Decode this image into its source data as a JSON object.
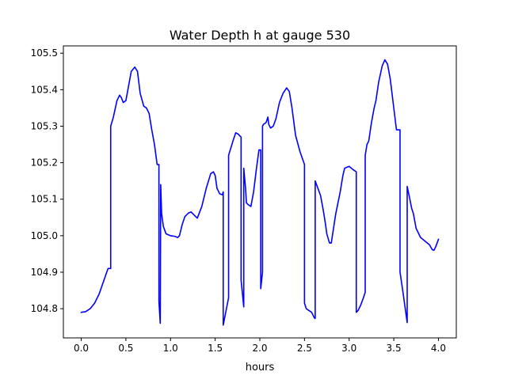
{
  "chart_data": {
    "type": "line",
    "title": "Water Depth h at gauge 530",
    "xlabel": "hours",
    "ylabel": "",
    "xlim": [
      -0.2,
      4.2
    ],
    "ylim": [
      104.72,
      105.52
    ],
    "xticks": [
      0.0,
      0.5,
      1.0,
      1.5,
      2.0,
      2.5,
      3.0,
      3.5,
      4.0
    ],
    "xtick_labels": [
      "0.0",
      "0.5",
      "1.0",
      "1.5",
      "2.0",
      "2.5",
      "3.0",
      "3.5",
      "4.0"
    ],
    "yticks": [
      104.8,
      104.9,
      105.0,
      105.1,
      105.2,
      105.3,
      105.4,
      105.5
    ],
    "ytick_labels": [
      "104.8",
      "104.9",
      "105.0",
      "105.1",
      "105.2",
      "105.3",
      "105.4",
      "105.5"
    ],
    "grid": false,
    "series": [
      {
        "color": "#0000ff",
        "x": [
          0.0,
          0.05,
          0.1,
          0.15,
          0.2,
          0.25,
          0.3,
          0.33,
          0.33,
          0.36,
          0.4,
          0.43,
          0.45,
          0.47,
          0.5,
          0.53,
          0.56,
          0.6,
          0.63,
          0.66,
          0.7,
          0.73,
          0.76,
          0.79,
          0.82,
          0.85,
          0.87,
          0.87,
          0.885,
          0.89,
          0.895,
          0.9,
          0.92,
          0.95,
          1.0,
          1.05,
          1.08,
          1.1,
          1.13,
          1.16,
          1.2,
          1.23,
          1.27,
          1.3,
          1.35,
          1.4,
          1.45,
          1.48,
          1.5,
          1.52,
          1.55,
          1.58,
          1.59,
          1.59,
          1.65,
          1.65,
          1.7,
          1.73,
          1.76,
          1.77,
          1.79,
          1.79,
          1.82,
          1.82,
          1.84,
          1.85,
          1.87,
          1.9,
          1.93,
          1.96,
          1.99,
          2.01,
          2.01,
          2.03,
          2.03,
          2.04,
          2.07,
          2.09,
          2.1,
          2.12,
          2.15,
          2.18,
          2.22,
          2.26,
          2.3,
          2.33,
          2.36,
          2.4,
          2.45,
          2.5,
          2.5,
          2.52,
          2.55,
          2.58,
          2.61,
          2.62,
          2.62,
          2.65,
          2.68,
          2.71,
          2.73,
          2.75,
          2.78,
          2.8,
          2.85,
          2.9,
          2.93,
          2.95,
          3.0,
          3.05,
          3.08,
          3.08,
          3.1,
          3.13,
          3.16,
          3.18,
          3.18,
          3.2,
          3.22,
          3.25,
          3.28,
          3.3,
          3.33,
          3.37,
          3.4,
          3.43,
          3.46,
          3.5,
          3.53,
          3.57,
          3.57,
          3.6,
          3.65,
          3.65,
          3.68,
          3.7,
          3.72,
          3.75,
          3.8,
          3.85,
          3.9,
          3.93,
          3.95,
          3.97,
          4.0
        ],
        "y": [
          104.79,
          104.792,
          104.8,
          104.815,
          104.84,
          104.875,
          104.91,
          104.91,
          105.3,
          105.325,
          105.37,
          105.385,
          105.378,
          105.365,
          105.37,
          105.41,
          105.45,
          105.462,
          105.45,
          105.39,
          105.355,
          105.35,
          105.335,
          105.29,
          105.25,
          105.195,
          105.195,
          104.82,
          104.76,
          105.14,
          105.1,
          105.06,
          105.025,
          105.005,
          105.0,
          104.998,
          104.995,
          105.0,
          105.03,
          105.052,
          105.062,
          105.065,
          105.055,
          105.048,
          105.08,
          105.13,
          105.17,
          105.175,
          105.165,
          105.13,
          105.115,
          105.112,
          105.12,
          104.755,
          104.83,
          105.22,
          105.26,
          105.282,
          105.278,
          105.275,
          105.27,
          104.878,
          104.805,
          105.185,
          105.13,
          105.09,
          105.085,
          105.08,
          105.12,
          105.18,
          105.235,
          105.235,
          104.855,
          104.9,
          105.3,
          105.305,
          105.31,
          105.325,
          105.305,
          105.295,
          105.3,
          105.32,
          105.365,
          105.39,
          105.405,
          105.395,
          105.35,
          105.275,
          105.23,
          105.195,
          104.815,
          104.8,
          104.795,
          104.79,
          104.775,
          104.773,
          105.15,
          105.13,
          105.11,
          105.07,
          105.04,
          105.005,
          104.98,
          104.98,
          105.06,
          105.12,
          105.165,
          105.185,
          105.19,
          105.18,
          105.175,
          104.79,
          104.795,
          104.81,
          104.83,
          104.845,
          105.22,
          105.25,
          105.26,
          105.31,
          105.35,
          105.37,
          105.42,
          105.465,
          105.482,
          105.47,
          105.43,
          105.35,
          105.29,
          105.29,
          104.9,
          104.85,
          104.762,
          105.135,
          105.1,
          105.075,
          105.06,
          105.02,
          104.995,
          104.985,
          104.975,
          104.962,
          104.96,
          104.97,
          104.99
        ]
      }
    ]
  }
}
